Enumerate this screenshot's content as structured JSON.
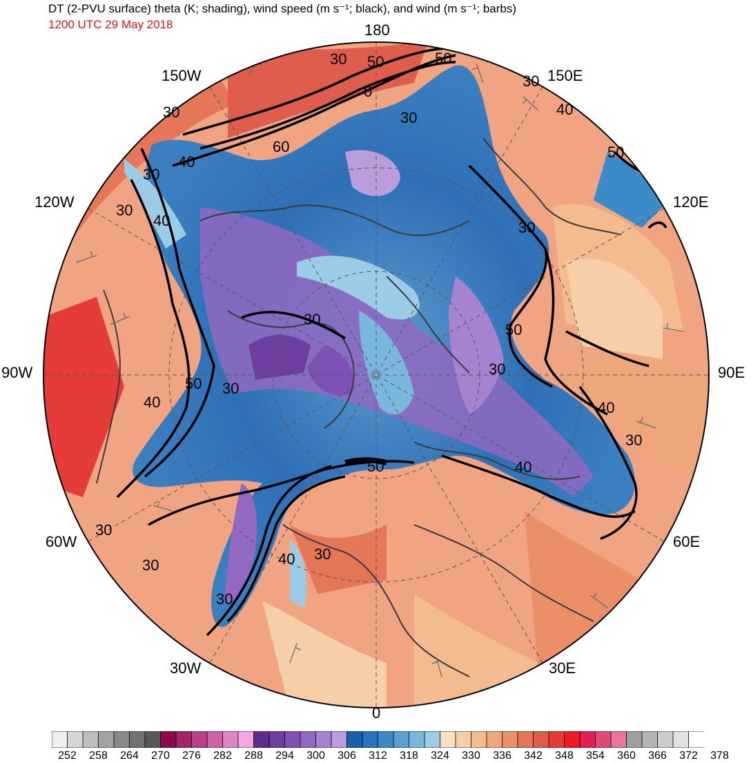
{
  "title": "DT (2-PVU surface) theta (K; shading), wind speed (m s⁻¹; black), and wind (m s⁻¹; barbs)",
  "subtitle": "1200 UTC 29 May 2018",
  "colors": {
    "subtitle": "#e8101a",
    "contour": "#000000",
    "coastline": "#3a3a3a"
  },
  "projection": "north polar stereographic",
  "longitude_labels": {
    "top": "180",
    "bottom": "0",
    "left": "90W",
    "right": "90E",
    "upper_left_1": "150W",
    "upper_left_2": "120W",
    "upper_right_1": "150E",
    "upper_right_2": "120E",
    "lower_left_1": "60W",
    "lower_left_2": "30W",
    "lower_right_1": "60E",
    "lower_right_2": "30E"
  },
  "contour_labels": [
    "30",
    "50",
    "0",
    "30",
    "60",
    "40",
    "30",
    "30",
    "40",
    "30",
    "30",
    "50",
    "40",
    "30",
    "30",
    "40",
    "30",
    "30",
    "30",
    "40",
    "50",
    "30",
    "30",
    "40",
    "30",
    "30",
    "30",
    "50",
    "40",
    "30",
    "150",
    "40",
    "50",
    "30",
    "60"
  ],
  "colorbar": {
    "tick_labels": [
      "252",
      "258",
      "264",
      "270",
      "276",
      "282",
      "288",
      "294",
      "300",
      "306",
      "312",
      "318",
      "324",
      "330",
      "336",
      "342",
      "348",
      "354",
      "360",
      "366",
      "372",
      "378"
    ],
    "colors": [
      "#efefef",
      "#d6d6d6",
      "#bdbdbd",
      "#a3a3a3",
      "#8a8a8a",
      "#717171",
      "#585858",
      "#8e0a4a",
      "#a4246a",
      "#b9428a",
      "#cb63a6",
      "#de86c3",
      "#f2a8dc",
      "#5b2d8c",
      "#6c3ea0",
      "#7e52b4",
      "#9168c2",
      "#a583cf",
      "#b99edb",
      "#1a5fae",
      "#2574bd",
      "#3b8bc8",
      "#58a1d2",
      "#79b7dc",
      "#9ccce5",
      "#f8e0c4",
      "#f6cfa9",
      "#f3bc90",
      "#efa67a",
      "#ea8f67",
      "#e57658",
      "#df5d4c",
      "#e53c3a",
      "#ee1c22",
      "#e21f52",
      "#e04a79",
      "#e6779a",
      "#9e9e9e",
      "#b4b4b4",
      "#cbcbcb",
      "#e2e2e2",
      "#ffffff"
    ]
  }
}
